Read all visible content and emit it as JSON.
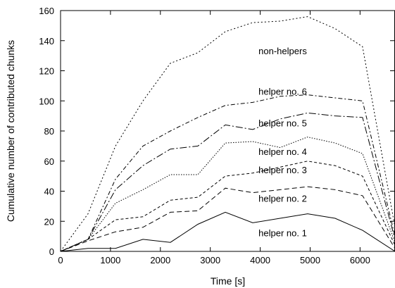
{
  "chart_data": {
    "type": "line",
    "title": "",
    "xlabel": "Time [s]",
    "ylabel": "Cumulative number of contributed chunks",
    "xlim": [
      0,
      6700
    ],
    "ylim": [
      0,
      160
    ],
    "xticks": [
      0,
      1000,
      2000,
      3000,
      4000,
      5000,
      6000
    ],
    "yticks": [
      0,
      20,
      40,
      60,
      80,
      100,
      120,
      140,
      160
    ],
    "grid": false,
    "x": [
      0,
      550,
      1100,
      1650,
      2200,
      2750,
      3300,
      3850,
      4400,
      4950,
      5500,
      6050,
      6700
    ],
    "series": [
      {
        "name": "helper no. 1",
        "dash": "",
        "values": [
          0,
          2,
          2,
          8,
          6,
          18,
          26,
          19,
          22,
          25,
          22,
          14,
          0
        ]
      },
      {
        "name": "helper no. 2",
        "dash": "7 4",
        "values": [
          0,
          7,
          13,
          16,
          26,
          27,
          42,
          39,
          41,
          43,
          41,
          37,
          2
        ]
      },
      {
        "name": "helper no. 3",
        "dash": "4 3",
        "values": [
          0,
          8,
          21,
          23,
          34,
          36,
          50,
          52,
          56,
          60,
          57,
          50,
          4
        ]
      },
      {
        "name": "helper no. 4",
        "dash": "1.5 2",
        "values": [
          0,
          8,
          32,
          41,
          51,
          51,
          72,
          73,
          69,
          76,
          72,
          65,
          6
        ]
      },
      {
        "name": "helper no. 5",
        "dash": "10 3 2 3",
        "values": [
          0,
          8,
          41,
          57,
          68,
          70,
          84,
          81,
          88,
          92,
          90,
          89,
          8
        ]
      },
      {
        "name": "helper no. 6",
        "dash": "6 3 2 3",
        "values": [
          0,
          8,
          48,
          70,
          80,
          89,
          97,
          99,
          103,
          104,
          102,
          100,
          10
        ]
      },
      {
        "name": "non-helpers",
        "dash": "2 3",
        "values": [
          0,
          25,
          70,
          100,
          125,
          132,
          146,
          152,
          153,
          156,
          148,
          136,
          16
        ]
      }
    ]
  }
}
